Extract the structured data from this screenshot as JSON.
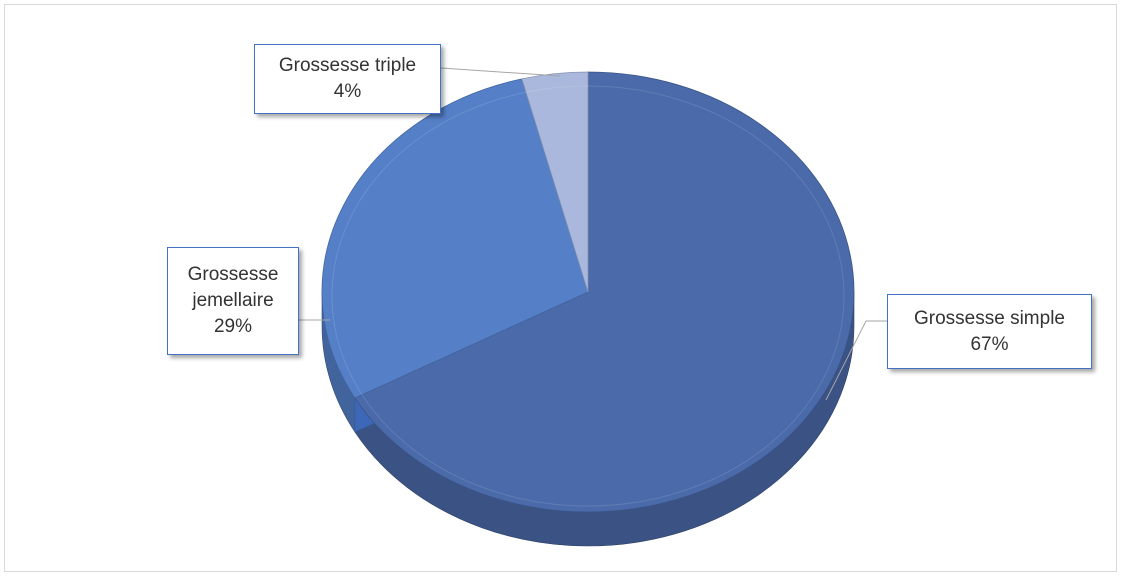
{
  "chart_data": {
    "type": "pie",
    "style": "3d",
    "title": "",
    "slices": [
      {
        "label": "Grossesse simple",
        "value": 67,
        "display": "67%",
        "color": "#4a6aa9"
      },
      {
        "label": "Grossesse jemellaire",
        "value": 29,
        "display": "29%",
        "color": "#5580c8"
      },
      {
        "label": "Grossesse triple",
        "value": 4,
        "display": "4%",
        "color": "#a9b8dc"
      }
    ],
    "label_lines": [
      "Grossesse",
      "jemellaire"
    ],
    "legend": "none",
    "data_labels": "callouts"
  }
}
